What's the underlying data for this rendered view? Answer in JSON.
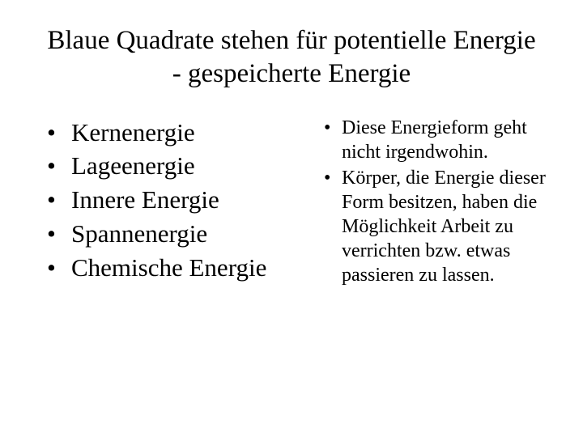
{
  "slide": {
    "title": "Blaue Quadrate stehen für potentielle Energie - gespeicherte Energie",
    "left_items": [
      "Kernenergie",
      "Lageenergie",
      "Innere Energie",
      "Spannenergie",
      "Chemische Energie"
    ],
    "right_items": [
      "Diese Energieform geht nicht irgendwohin.",
      "Körper, die Energie dieser Form besitzen, haben die Möglichkeit Arbeit zu verrichten bzw. etwas passieren zu lassen."
    ],
    "styling": {
      "background_color": "#ffffff",
      "text_color": "#000000",
      "font_family": "Times New Roman",
      "title_fontsize": 33,
      "left_item_fontsize": 31,
      "right_item_fontsize": 24,
      "bullet_char": "•"
    }
  }
}
